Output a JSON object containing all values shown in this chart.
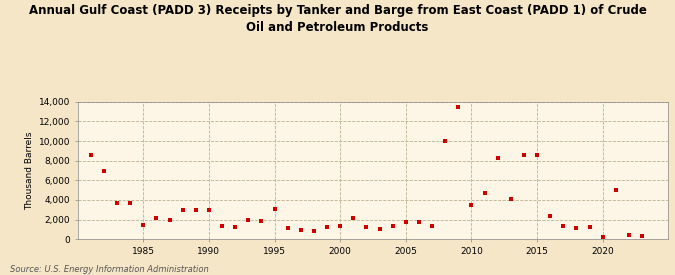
{
  "title": "Annual Gulf Coast (PADD 3) Receipts by Tanker and Barge from East Coast (PADD 1) of Crude\nOil and Petroleum Products",
  "ylabel": "Thousand Barrels",
  "source": "Source: U.S. Energy Information Administration",
  "background_color": "#f5e6c8",
  "plot_background_color": "#fdf5e6",
  "marker_color": "#cc0000",
  "years": [
    1981,
    1982,
    1983,
    1984,
    1985,
    1986,
    1987,
    1988,
    1989,
    1990,
    1991,
    1992,
    1993,
    1994,
    1995,
    1996,
    1997,
    1998,
    1999,
    2000,
    2001,
    2002,
    2003,
    2004,
    2005,
    2006,
    2007,
    2008,
    2009,
    2010,
    2011,
    2012,
    2013,
    2014,
    2015,
    2016,
    2017,
    2018,
    2019,
    2020,
    2021,
    2022,
    2023
  ],
  "values": [
    8600,
    6900,
    3700,
    3700,
    1500,
    2200,
    2000,
    3000,
    3000,
    3000,
    1400,
    1200,
    2000,
    1900,
    3100,
    1100,
    900,
    800,
    1200,
    1400,
    2200,
    1200,
    1000,
    1400,
    1800,
    1800,
    1300,
    10000,
    13500,
    3500,
    4700,
    8300,
    4100,
    8600,
    8600,
    2400,
    1300,
    1100,
    1200,
    200,
    5000,
    400,
    300
  ],
  "ylim": [
    0,
    14000
  ],
  "yticks": [
    0,
    2000,
    4000,
    6000,
    8000,
    10000,
    12000,
    14000
  ],
  "ytick_labels": [
    "0",
    "2,000",
    "4,000",
    "6,000",
    "8,000",
    "10,000",
    "12,000",
    "14,000"
  ],
  "xticks": [
    1985,
    1990,
    1995,
    2000,
    2005,
    2010,
    2015,
    2020
  ],
  "xlim": [
    1980.0,
    2025.0
  ]
}
